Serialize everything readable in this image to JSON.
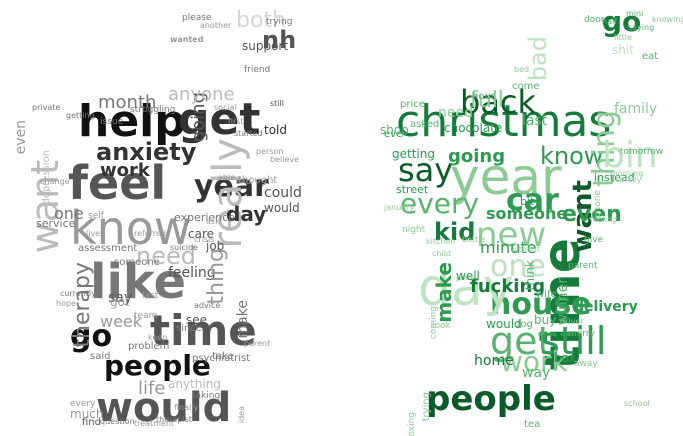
{
  "colors": {
    "left_palette": [
      "#111111",
      "#333333",
      "#555555",
      "#777777",
      "#999999",
      "#bbbbbb",
      "#d6d6d6"
    ],
    "right_palette": [
      "#0b5a2a",
      "#167a3c",
      "#2e9a52",
      "#59b26f",
      "#8dcb96",
      "#bfe2c3",
      "#dff0e0"
    ]
  },
  "clouds": [
    {
      "id": "left",
      "words": [
        {
          "text": "help",
          "weight": 1.0,
          "shade": 0
        },
        {
          "text": "get",
          "weight": 0.95,
          "shade": 1
        },
        {
          "text": "feel",
          "weight": 0.95,
          "shade": 2
        },
        {
          "text": "know",
          "weight": 0.85,
          "shade": 4
        },
        {
          "text": "like",
          "weight": 0.9,
          "shade": 3
        },
        {
          "text": "would",
          "weight": 0.8,
          "shade": 2
        },
        {
          "text": "want",
          "weight": 0.8,
          "shade": 5
        },
        {
          "text": "time",
          "weight": 0.8,
          "shade": 2
        },
        {
          "text": "people",
          "weight": 0.6,
          "shade": 0
        },
        {
          "text": "year",
          "weight": 0.55,
          "shade": 1
        },
        {
          "text": "anxiety",
          "weight": 0.5,
          "shade": 1
        },
        {
          "text": "really",
          "weight": 0.6,
          "shade": 5
        },
        {
          "text": "go",
          "weight": 0.45,
          "shade": 0
        },
        {
          "text": "need",
          "weight": 0.45,
          "shade": 5
        },
        {
          "text": "work",
          "weight": 0.4,
          "shade": 1
        },
        {
          "text": "day",
          "weight": 0.35,
          "shade": 1
        },
        {
          "text": "therapy",
          "weight": 0.35,
          "shade": 3
        },
        {
          "text": "going",
          "weight": 0.3,
          "shade": 2
        },
        {
          "text": "month",
          "weight": 0.3,
          "shade": 3
        },
        {
          "text": "anyone",
          "weight": 0.3,
          "shade": 5
        },
        {
          "text": "feeling",
          "weight": 0.25,
          "shade": 2
        },
        {
          "text": "thing",
          "weight": 0.25,
          "shade": 4
        },
        {
          "text": "make",
          "weight": 0.2,
          "shade": 3
        },
        {
          "text": "one",
          "weight": 0.2,
          "shade": 3
        },
        {
          "text": "say",
          "weight": 0.2,
          "shade": 2
        },
        {
          "text": "week",
          "weight": 0.2,
          "shade": 4
        },
        {
          "text": "life",
          "weight": 0.25,
          "shade": 4
        },
        {
          "text": "even",
          "weight": 0.2,
          "shade": 4
        },
        {
          "text": "nh",
          "weight": 0.25,
          "shade": 2
        },
        {
          "text": "both",
          "weight": 0.2,
          "shade": 6
        },
        {
          "text": "support",
          "weight": 0.12,
          "shade": 2
        },
        {
          "text": "please",
          "weight": 0.08,
          "shade": 3
        },
        {
          "text": "trying",
          "weight": 0.08,
          "shade": 3
        },
        {
          "text": "told",
          "weight": 0.12,
          "shade": 1
        },
        {
          "text": "could",
          "weight": 0.14,
          "shade": 2
        },
        {
          "text": "would",
          "weight": 0.12,
          "shade": 2
        },
        {
          "text": "job",
          "weight": 0.12,
          "shade": 2
        },
        {
          "text": "care",
          "weight": 0.12,
          "shade": 2
        },
        {
          "text": "see",
          "weight": 0.1,
          "shade": 2
        },
        {
          "text": "experience",
          "weight": 0.12,
          "shade": 3
        },
        {
          "text": "service",
          "weight": 0.12,
          "shade": 3
        },
        {
          "text": "assessment",
          "weight": 0.1,
          "shade": 3
        },
        {
          "text": "psychiatrist",
          "weight": 0.1,
          "shade": 3
        },
        {
          "text": "problem",
          "weight": 0.1,
          "shade": 3
        },
        {
          "text": "anything",
          "weight": 0.12,
          "shade": 5
        },
        {
          "text": "since",
          "weight": 0.1,
          "shade": 3
        },
        {
          "text": "said",
          "weight": 0.1,
          "shade": 3
        },
        {
          "text": "take",
          "weight": 0.1,
          "shade": 3
        },
        {
          "text": "got",
          "weight": 0.12,
          "shade": 4
        },
        {
          "text": "someone",
          "weight": 0.1,
          "shade": 3
        },
        {
          "text": "thought",
          "weight": 0.1,
          "shade": 4
        },
        {
          "text": "friend",
          "weight": 0.08,
          "shade": 3
        },
        {
          "text": "self",
          "weight": 0.08,
          "shade": 4
        },
        {
          "text": "find",
          "weight": 0.1,
          "shade": 2
        },
        {
          "text": "much",
          "weight": 0.1,
          "shade": 4
        },
        {
          "text": "every",
          "weight": 0.08,
          "shade": 4
        },
        {
          "text": "taking",
          "weight": 0.08,
          "shade": 3
        },
        {
          "text": "advice",
          "weight": 0.07,
          "shade": 3
        },
        {
          "text": "currently",
          "weight": 0.07,
          "shade": 3
        },
        {
          "text": "depression",
          "weight": 0.09,
          "shade": 5
        },
        {
          "text": "private",
          "weight": 0.07,
          "shade": 3
        },
        {
          "text": "issue",
          "weight": 0.07,
          "shade": 3
        },
        {
          "text": "struggling",
          "weight": 0.07,
          "shade": 3
        },
        {
          "text": "started",
          "weight": 0.07,
          "shade": 3
        },
        {
          "text": "therapist",
          "weight": 0.07,
          "shade": 3
        },
        {
          "text": "treatment",
          "weight": 0.07,
          "shade": 4
        },
        {
          "text": "question",
          "weight": 0.07,
          "shade": 3
        },
        {
          "text": "suicide",
          "weight": 0.07,
          "shade": 3
        },
        {
          "text": "crisis",
          "weight": 0.07,
          "shade": 4
        },
        {
          "text": "referred",
          "weight": 0.07,
          "shade": 4
        },
        {
          "text": "team",
          "weight": 0.08,
          "shade": 4
        },
        {
          "text": "keep",
          "weight": 0.07,
          "shade": 4
        },
        {
          "text": "parent",
          "weight": 0.07,
          "shade": 4
        },
        {
          "text": "last",
          "weight": 0.09,
          "shade": 4
        },
        {
          "text": "still",
          "weight": 0.07,
          "shade": 2
        },
        {
          "text": "social",
          "weight": 0.07,
          "shade": 4
        },
        {
          "text": "person",
          "weight": 0.07,
          "shade": 4
        },
        {
          "text": "believe",
          "weight": 0.07,
          "shade": 4
        },
        {
          "text": "getting",
          "weight": 0.07,
          "shade": 3
        },
        {
          "text": "another",
          "weight": 0.07,
          "shade": 4
        },
        {
          "text": "wanted",
          "weight": 0.07,
          "shade": 4
        },
        {
          "text": "first",
          "weight": 0.07,
          "shade": 4
        },
        {
          "text": "able",
          "weight": 0.07,
          "shade": 4
        },
        {
          "text": "end",
          "weight": 0.07,
          "shade": 4
        },
        {
          "text": "live",
          "weight": 0.07,
          "shade": 4
        },
        {
          "text": "hope",
          "weight": 0.07,
          "shade": 4
        },
        {
          "text": "idea",
          "weight": 0.07,
          "shade": 4
        },
        {
          "text": "finally",
          "weight": 0.07,
          "shade": 4
        },
        {
          "text": "ask",
          "weight": 0.07,
          "shade": 4
        },
        {
          "text": "change",
          "weight": 0.07,
          "shade": 4
        },
        {
          "text": "past",
          "weight": 0.07,
          "shade": 4
        }
      ]
    },
    {
      "id": "right",
      "words": [
        {
          "text": "christmas",
          "weight": 1.0,
          "shade": 1
        },
        {
          "text": "year",
          "weight": 0.8,
          "shade": 4
        },
        {
          "text": "back",
          "weight": 0.6,
          "shade": 0
        },
        {
          "text": "people",
          "weight": 0.7,
          "shade": 0
        },
        {
          "text": "time",
          "weight": 0.75,
          "shade": 1
        },
        {
          "text": "get",
          "weight": 0.65,
          "shade": 3
        },
        {
          "text": "still",
          "weight": 0.6,
          "shade": 2
        },
        {
          "text": "house",
          "weight": 0.55,
          "shade": 2
        },
        {
          "text": "say",
          "weight": 0.55,
          "shade": 0
        },
        {
          "text": "know",
          "weight": 0.5,
          "shade": 2
        },
        {
          "text": "new",
          "weight": 0.55,
          "shade": 4
        },
        {
          "text": "car",
          "weight": 0.5,
          "shade": 2
        },
        {
          "text": "every",
          "weight": 0.5,
          "shade": 3
        },
        {
          "text": "kid",
          "weight": 0.45,
          "shade": 1
        },
        {
          "text": "work",
          "weight": 0.5,
          "shade": 4
        },
        {
          "text": "want",
          "weight": 0.45,
          "shade": 0
        },
        {
          "text": "day",
          "weight": 0.55,
          "shade": 5
        },
        {
          "text": "even",
          "weight": 0.35,
          "shade": 2
        },
        {
          "text": "going",
          "weight": 0.3,
          "shade": 2
        },
        {
          "text": "go",
          "weight": 0.4,
          "shade": 1
        },
        {
          "text": "make",
          "weight": 0.35,
          "shade": 2
        },
        {
          "text": "one",
          "weight": 0.4,
          "shade": 5
        },
        {
          "text": "fucking",
          "weight": 0.25,
          "shade": 1
        },
        {
          "text": "someone",
          "weight": 0.22,
          "shade": 2
        },
        {
          "text": "family",
          "weight": 0.22,
          "shade": 4
        },
        {
          "text": "thing",
          "weight": 0.3,
          "shade": 4
        },
        {
          "text": "minute",
          "weight": 0.2,
          "shade": 2
        },
        {
          "text": "full",
          "weight": 0.25,
          "shade": 4
        },
        {
          "text": "home",
          "weight": 0.2,
          "shade": 1
        },
        {
          "text": "way",
          "weight": 0.18,
          "shade": 3
        },
        {
          "text": "delivery",
          "weight": 0.18,
          "shade": 2
        },
        {
          "text": "think",
          "weight": 0.15,
          "shade": 3
        },
        {
          "text": "winner",
          "weight": 0.15,
          "shade": 3
        },
        {
          "text": "need",
          "weight": 0.2,
          "shade": 4
        },
        {
          "text": "bin",
          "weight": 0.3,
          "shade": 5
        },
        {
          "text": "bad",
          "weight": 0.2,
          "shade": 5
        },
        {
          "text": "chocolate",
          "weight": 0.12,
          "shade": 2
        },
        {
          "text": "instead",
          "weight": 0.12,
          "shade": 2
        },
        {
          "text": "street",
          "weight": 0.12,
          "shade": 2
        },
        {
          "text": "getting",
          "weight": 0.12,
          "shade": 2
        },
        {
          "text": "box",
          "weight": 0.12,
          "shade": 2
        },
        {
          "text": "would",
          "weight": 0.12,
          "shade": 2
        },
        {
          "text": "buy",
          "weight": 0.12,
          "shade": 3
        },
        {
          "text": "well",
          "weight": 0.12,
          "shade": 2
        },
        {
          "text": "bit",
          "weight": 0.1,
          "shade": 2
        },
        {
          "text": "eve",
          "weight": 0.1,
          "shade": 2
        },
        {
          "text": "shop",
          "weight": 0.12,
          "shade": 3
        },
        {
          "text": "last",
          "weight": 0.12,
          "shade": 3
        },
        {
          "text": "come",
          "weight": 0.1,
          "shade": 3
        },
        {
          "text": "price",
          "weight": 0.1,
          "shade": 3
        },
        {
          "text": "hour",
          "weight": 0.1,
          "shade": 3
        },
        {
          "text": "asked",
          "weight": 0.1,
          "shade": 3
        },
        {
          "text": "tomorrow",
          "weight": 0.08,
          "shade": 3
        },
        {
          "text": "give",
          "weight": 0.08,
          "shade": 3
        },
        {
          "text": "dog",
          "weight": 0.1,
          "shade": 3
        },
        {
          "text": "tea",
          "weight": 0.1,
          "shade": 3
        },
        {
          "text": "eat",
          "weight": 0.08,
          "shade": 3
        },
        {
          "text": "door",
          "weight": 0.08,
          "shade": 3
        },
        {
          "text": "half",
          "weight": 0.08,
          "shade": 3
        },
        {
          "text": "saying",
          "weight": 0.08,
          "shade": 3
        },
        {
          "text": "mini",
          "weight": 0.08,
          "shade": 3
        },
        {
          "text": "wife",
          "weight": 0.1,
          "shade": 3
        },
        {
          "text": "merry",
          "weight": 0.08,
          "shade": 3
        },
        {
          "text": "parent",
          "weight": 0.08,
          "shade": 3
        },
        {
          "text": "away",
          "weight": 0.08,
          "shade": 4
        },
        {
          "text": "night",
          "weight": 0.08,
          "shade": 4
        },
        {
          "text": "phone",
          "weight": 0.08,
          "shade": 4
        },
        {
          "text": "boxing",
          "weight": 0.08,
          "shade": 4
        },
        {
          "text": "trying",
          "weight": 0.1,
          "shade": 4
        },
        {
          "text": "coming",
          "weight": 0.08,
          "shade": 4
        },
        {
          "text": "look",
          "weight": 0.08,
          "shade": 4
        },
        {
          "text": "shit",
          "weight": 0.12,
          "shade": 5
        },
        {
          "text": "little",
          "weight": 0.07,
          "shade": 4
        },
        {
          "text": "bed",
          "weight": 0.07,
          "shade": 4
        },
        {
          "text": "school",
          "weight": 0.07,
          "shade": 4
        },
        {
          "text": "turkey",
          "weight": 0.07,
          "shade": 4
        },
        {
          "text": "knowing",
          "weight": 0.07,
          "shade": 4
        },
        {
          "text": "feeling",
          "weight": 0.07,
          "shade": 4
        },
        {
          "text": "bottle",
          "weight": 0.07,
          "shade": 4
        },
        {
          "text": "driver",
          "weight": 0.07,
          "shade": 4
        },
        {
          "text": "january",
          "weight": 0.07,
          "shade": 4
        },
        {
          "text": "kitchen",
          "weight": 0.07,
          "shade": 4
        },
        {
          "text": "morning",
          "weight": 0.07,
          "shade": 4
        },
        {
          "text": "child",
          "weight": 0.07,
          "shade": 4
        },
        {
          "text": "without",
          "weight": 0.07,
          "shade": 4
        }
      ]
    }
  ]
}
